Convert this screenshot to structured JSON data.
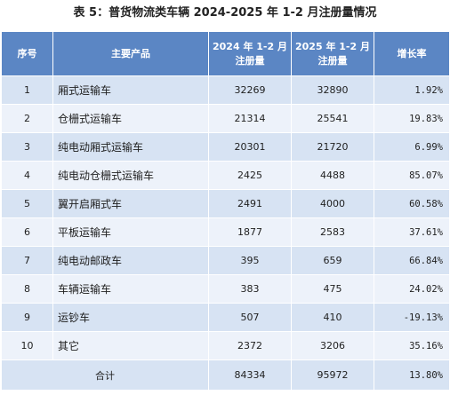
{
  "caption": "表 5：普货物流类车辆 2024-2025 年 1-2 月注册量情况",
  "headers": {
    "idx": "序号",
    "name": "主要产品",
    "y2024_line1": "2024 年 1-2 月",
    "y2024_line2": "注册量",
    "y2025_line1": "2025 年 1-2 月",
    "y2025_line2": "注册量",
    "growth": "增长率"
  },
  "rows": [
    {
      "idx": "1",
      "name": "厢式运输车",
      "y2024": "32269",
      "y2025": "32890",
      "growth": "1.92%"
    },
    {
      "idx": "2",
      "name": "仓栅式运输车",
      "y2024": "21314",
      "y2025": "25541",
      "growth": "19.83%"
    },
    {
      "idx": "3",
      "name": "纯电动厢式运输车",
      "y2024": "20301",
      "y2025": "21720",
      "growth": "6.99%"
    },
    {
      "idx": "4",
      "name": "纯电动仓栅式运输车",
      "y2024": "2425",
      "y2025": "4488",
      "growth": "85.07%"
    },
    {
      "idx": "5",
      "name": "翼开启厢式车",
      "y2024": "2491",
      "y2025": "4000",
      "growth": "60.58%"
    },
    {
      "idx": "6",
      "name": "平板运输车",
      "y2024": "1877",
      "y2025": "2583",
      "growth": "37.61%"
    },
    {
      "idx": "7",
      "name": "纯电动邮政车",
      "y2024": "395",
      "y2025": "659",
      "growth": "66.84%"
    },
    {
      "idx": "8",
      "name": "车辆运输车",
      "y2024": "383",
      "y2025": "475",
      "growth": "24.02%"
    },
    {
      "idx": "9",
      "name": "运钞车",
      "y2024": "507",
      "y2025": "410",
      "growth": "-19.13%"
    },
    {
      "idx": "10",
      "name": "其它",
      "y2024": "2372",
      "y2025": "3206",
      "growth": "35.16%"
    }
  ],
  "total": {
    "label": "合计",
    "y2024": "84334",
    "y2025": "95972",
    "growth": "13.80%"
  }
}
